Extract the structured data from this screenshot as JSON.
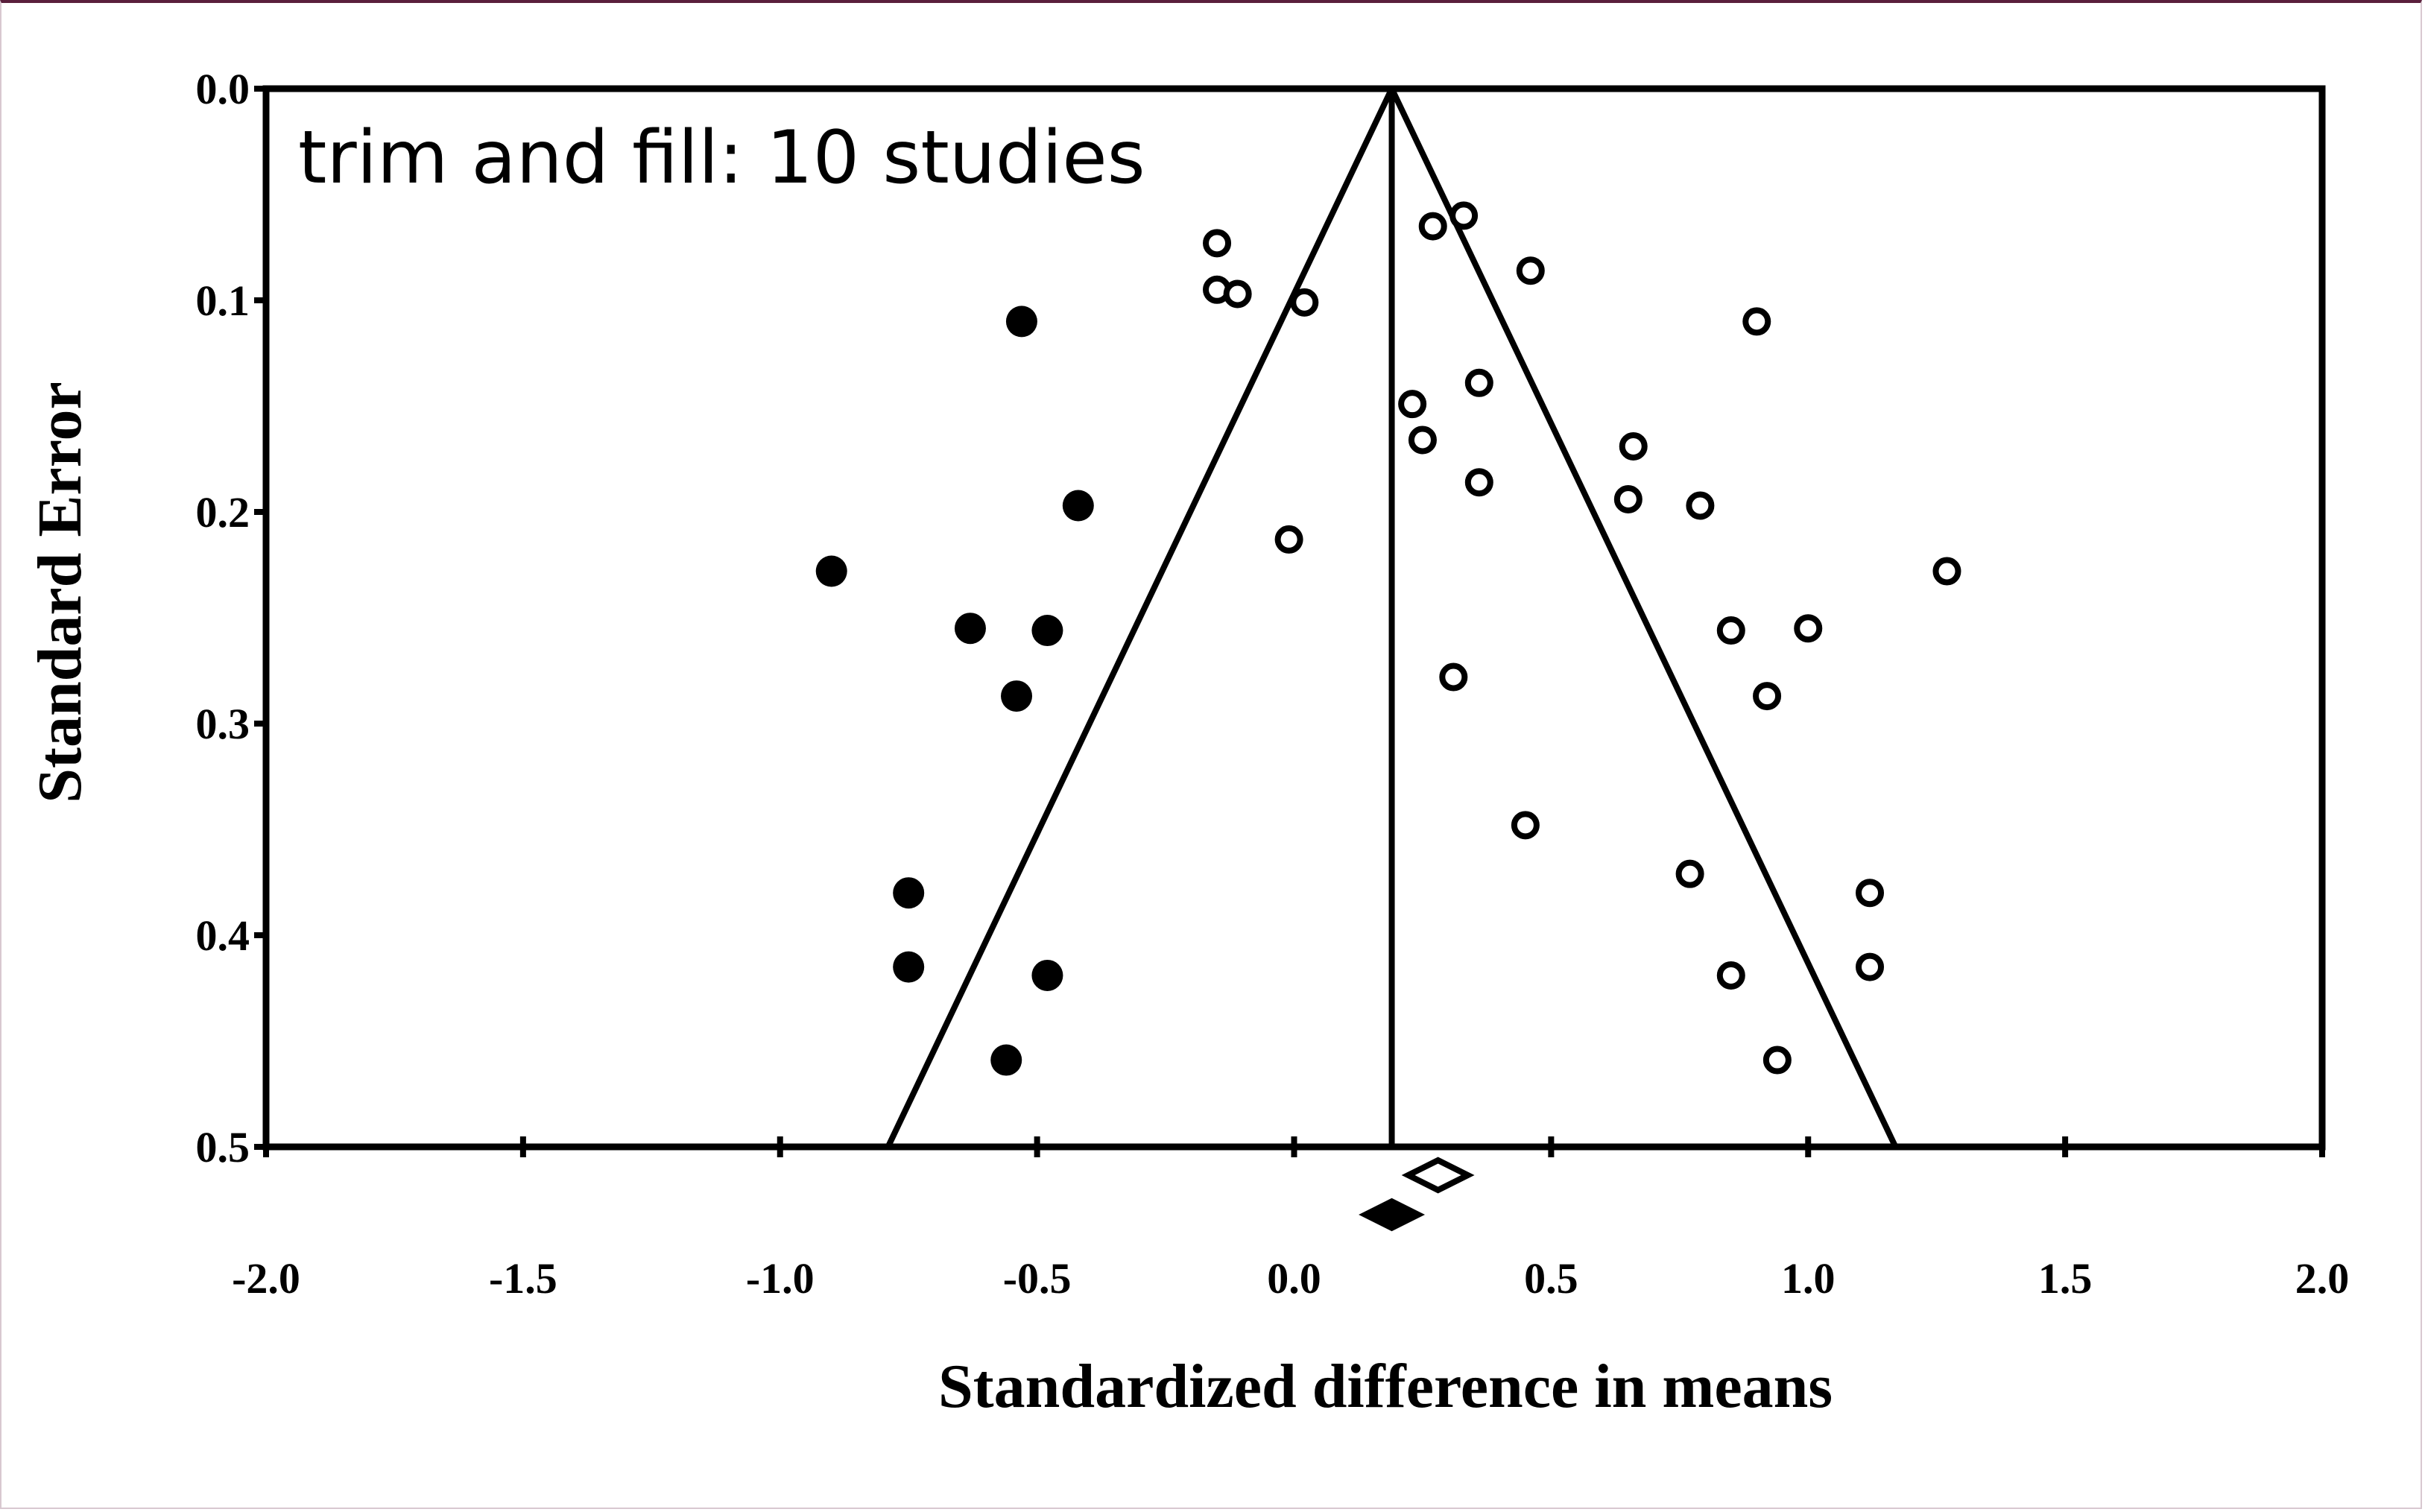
{
  "chart_data": {
    "type": "scatter",
    "title": "",
    "annotation": "trim and fill: 10 studies",
    "xlabel": "Standardized difference in means",
    "ylabel": "Standard Error",
    "xlim": [
      -2.0,
      2.0
    ],
    "ylim": [
      0.0,
      0.5
    ],
    "y_inverted": true,
    "x_ticks": [
      "-2.0",
      "-1.5",
      "-1.0",
      "-0.5",
      "0.0",
      "0.5",
      "1.0",
      "1.5",
      "2.0"
    ],
    "y_ticks": [
      "0.0",
      "0.1",
      "0.2",
      "0.3",
      "0.4",
      "0.5"
    ],
    "grid": false,
    "funnel": {
      "apex_x": 0.19,
      "apex_y": 0.0,
      "base_left_x": -0.79,
      "base_right_x": 1.17,
      "base_y": 0.5
    },
    "center_line_x": 0.19,
    "series": [
      {
        "marker": "filled-circle",
        "points": [
          {
            "x": -0.53,
            "y": 0.11
          },
          {
            "x": -0.42,
            "y": 0.197
          },
          {
            "x": -0.9,
            "y": 0.228
          },
          {
            "x": -0.63,
            "y": 0.255
          },
          {
            "x": -0.48,
            "y": 0.256
          },
          {
            "x": -0.54,
            "y": 0.287
          },
          {
            "x": -0.75,
            "y": 0.38
          },
          {
            "x": -0.75,
            "y": 0.415
          },
          {
            "x": -0.48,
            "y": 0.419
          },
          {
            "x": -0.56,
            "y": 0.459
          }
        ]
      },
      {
        "marker": "open-circle",
        "points": [
          {
            "x": -0.15,
            "y": 0.073
          },
          {
            "x": -0.15,
            "y": 0.095
          },
          {
            "x": -0.11,
            "y": 0.097
          },
          {
            "x": 0.02,
            "y": 0.101
          },
          {
            "x": 0.27,
            "y": 0.065
          },
          {
            "x": 0.33,
            "y": 0.06
          },
          {
            "x": 0.46,
            "y": 0.086
          },
          {
            "x": 0.9,
            "y": 0.11
          },
          {
            "x": 0.23,
            "y": 0.149
          },
          {
            "x": 0.36,
            "y": 0.139
          },
          {
            "x": 0.25,
            "y": 0.166
          },
          {
            "x": 0.66,
            "y": 0.169
          },
          {
            "x": 0.36,
            "y": 0.186
          },
          {
            "x": 0.65,
            "y": 0.194
          },
          {
            "x": 0.79,
            "y": 0.197
          },
          {
            "x": -0.01,
            "y": 0.213
          },
          {
            "x": 1.27,
            "y": 0.228
          },
          {
            "x": 0.85,
            "y": 0.256
          },
          {
            "x": 1.0,
            "y": 0.255
          },
          {
            "x": 0.31,
            "y": 0.278
          },
          {
            "x": 0.92,
            "y": 0.287
          },
          {
            "x": 0.45,
            "y": 0.348
          },
          {
            "x": 0.77,
            "y": 0.371
          },
          {
            "x": 1.12,
            "y": 0.38
          },
          {
            "x": 0.85,
            "y": 0.419
          },
          {
            "x": 1.12,
            "y": 0.415
          },
          {
            "x": 0.94,
            "y": 0.459
          }
        ]
      }
    ],
    "summary_diamonds": [
      {
        "marker": "open-diamond",
        "x": 0.28,
        "level": 1
      },
      {
        "marker": "filled-diamond",
        "x": 0.19,
        "level": 2
      }
    ]
  }
}
